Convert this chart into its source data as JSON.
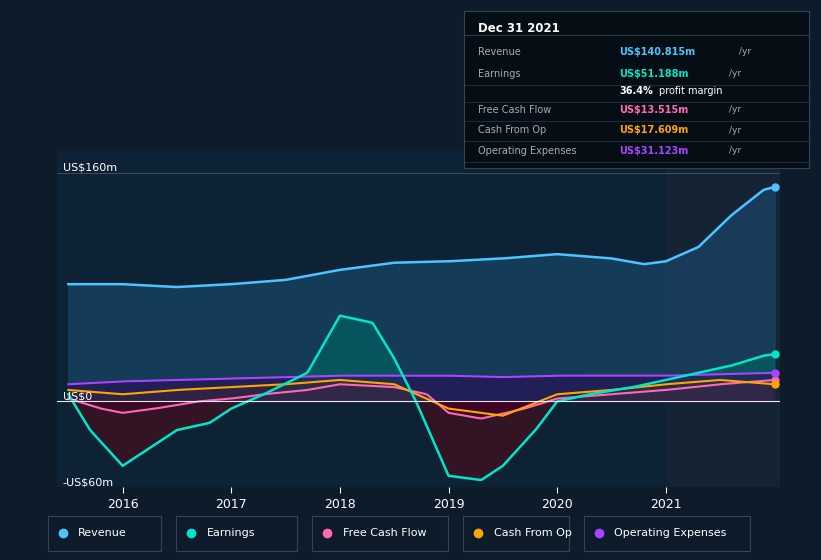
{
  "bg_color": "#0d1b2a",
  "chart_bg": "#0d2235",
  "title_box_date": "Dec 31 2021",
  "table_rows": [
    {
      "label": "Revenue",
      "value": "US$140.815m /yr",
      "color": "#4dc3ff"
    },
    {
      "label": "Earnings",
      "value": "US$51.188m /yr",
      "color": "#00e6c8"
    },
    {
      "label": "",
      "value": "36.4% profit margin",
      "color": "#ffffff"
    },
    {
      "label": "Free Cash Flow",
      "value": "US$13.515m /yr",
      "color": "#ff69b4"
    },
    {
      "label": "Cash From Op",
      "value": "US$17.609m /yr",
      "color": "#ffa500"
    },
    {
      "label": "Operating Expenses",
      "value": "US$31.123m /yr",
      "color": "#aa44ff"
    }
  ],
  "y_labels": [
    "US$160m",
    "US$0",
    "-US$60m"
  ],
  "x_labels": [
    "2016",
    "2017",
    "2018",
    "2019",
    "2020",
    "2021"
  ],
  "legend": [
    {
      "label": "Revenue",
      "color": "#4dc3ff"
    },
    {
      "label": "Earnings",
      "color": "#00e6c8"
    },
    {
      "label": "Free Cash Flow",
      "color": "#ff69b4"
    },
    {
      "label": "Cash From Op",
      "color": "#ffa500"
    },
    {
      "label": "Operating Expenses",
      "color": "#aa44ff"
    }
  ],
  "ylim": [
    -60,
    175
  ],
  "xlim": [
    2015.4,
    2022.05
  ],
  "revenue_color": "#4dc3ff",
  "earnings_color": "#00e6c8",
  "fcf_color": "#ff69b4",
  "cashop_color": "#ffa500",
  "opex_color": "#aa44ff",
  "revenue_fill_color": "#1a4a6e",
  "earnings_fill_pos_color": "#006666",
  "earnings_fill_neg_color": "#3a1020"
}
